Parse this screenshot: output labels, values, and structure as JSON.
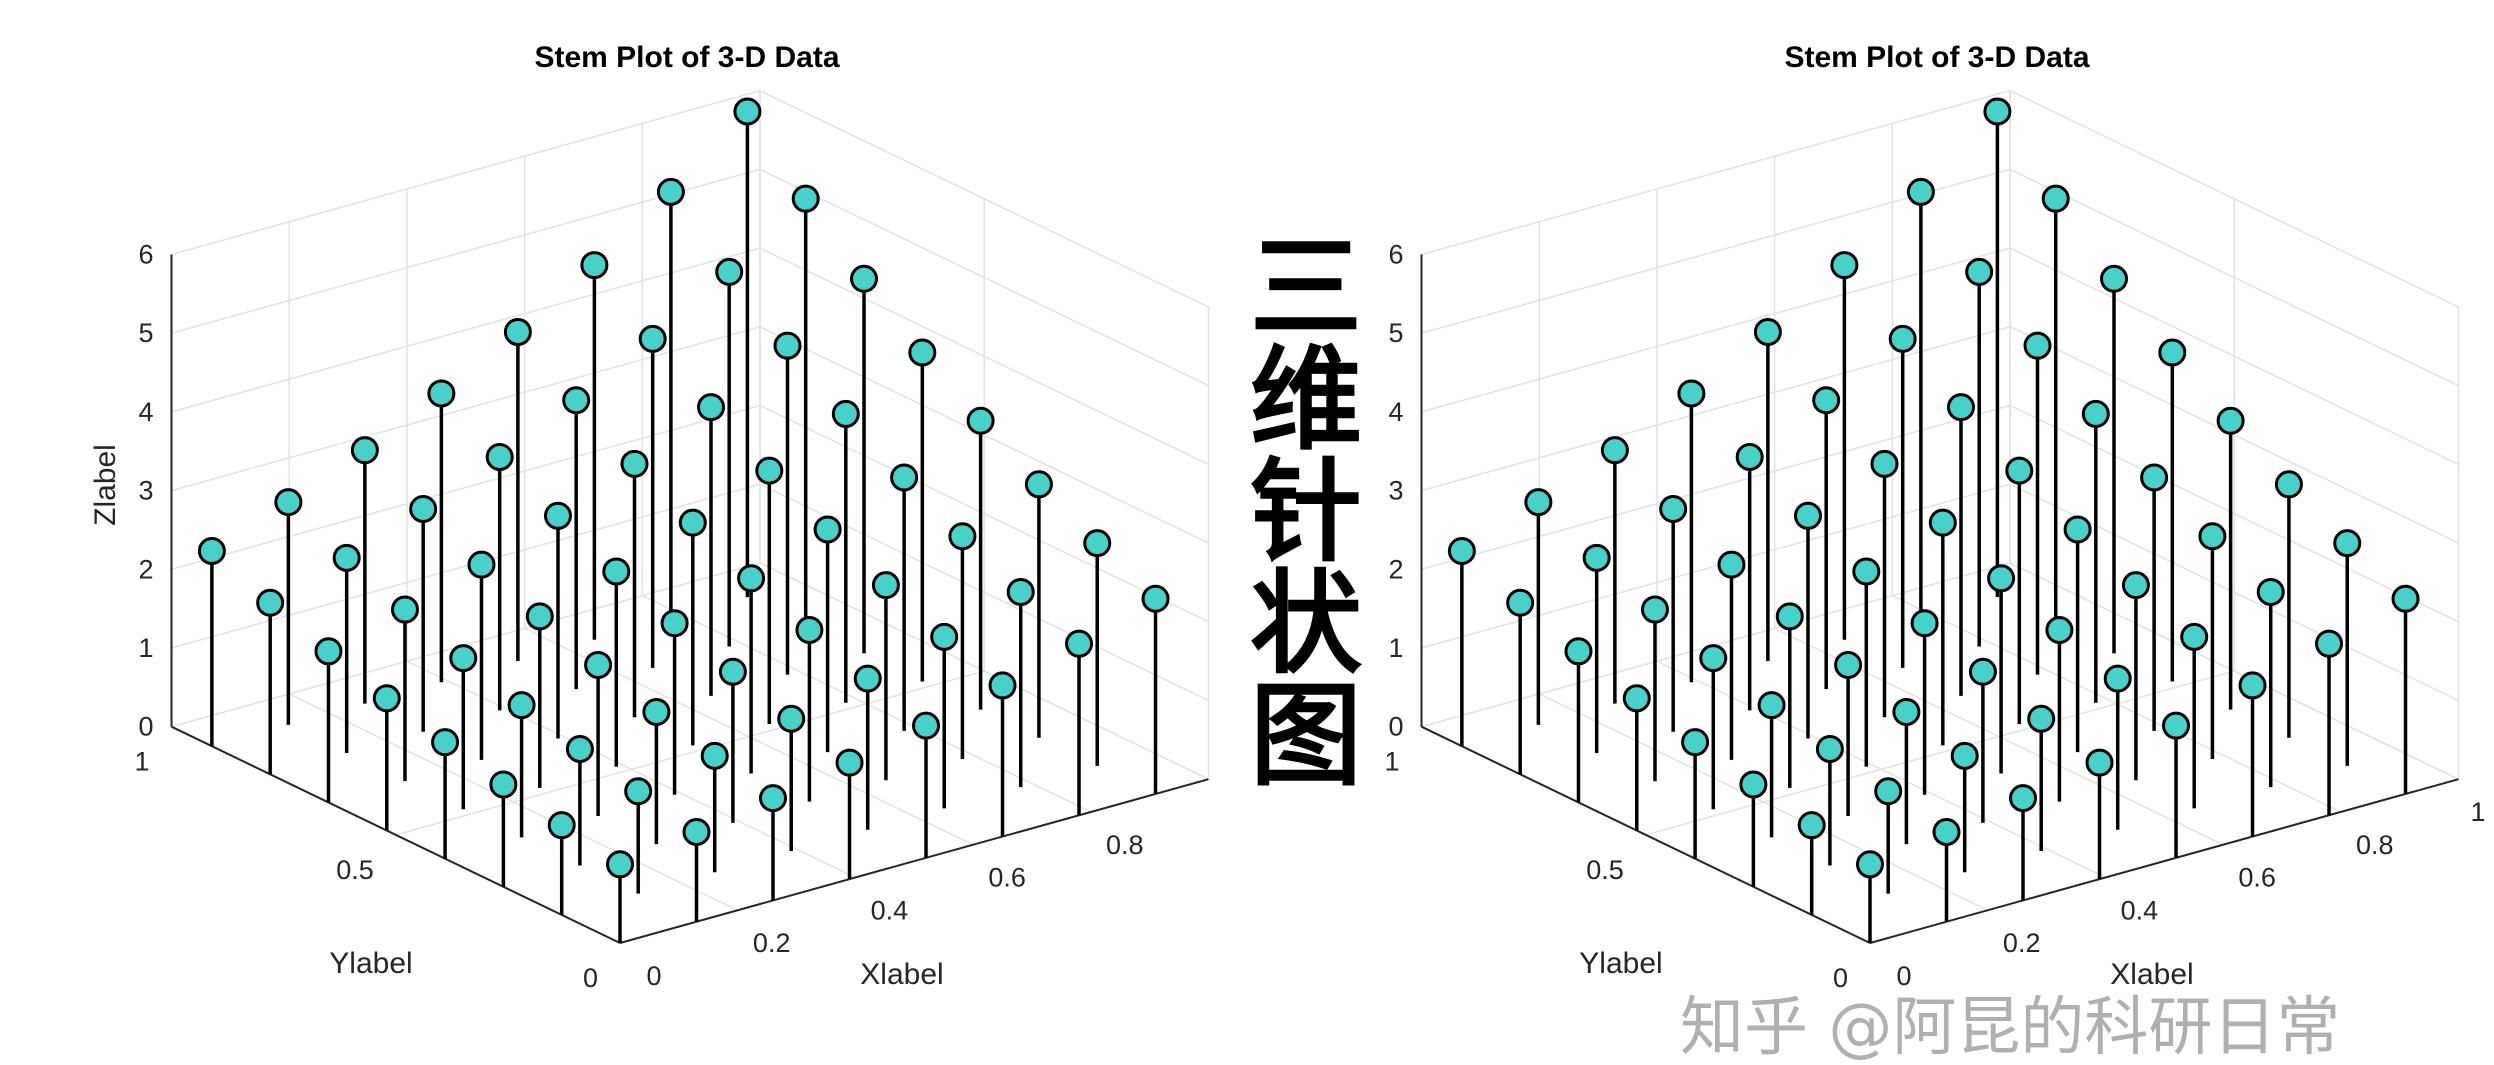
{
  "chart_data": [
    {
      "type": "stem3",
      "title": "Stem Plot of 3-D Data",
      "xlabel": "Xlabel",
      "ylabel": "Ylabel",
      "zlabel": "Zlabel",
      "xlim": [
        0,
        1
      ],
      "ylim": [
        0,
        1
      ],
      "zlim": [
        0,
        6
      ],
      "xticks": [
        "0",
        "0.2",
        "0.4",
        "0.6",
        "0.8"
      ],
      "yticks": [
        "0",
        "0.5",
        "1"
      ],
      "zticks": [
        "0",
        "1",
        "2",
        "3",
        "4",
        "5",
        "6"
      ],
      "grid": true,
      "marker_color": "#48d1c8",
      "stem_color": "#000000",
      "x": [
        0,
        0.13,
        0.26,
        0.39,
        0.52,
        0.65,
        0.78,
        0.91
      ],
      "y": [
        0,
        0.13,
        0.26,
        0.39,
        0.52,
        0.65,
        0.78,
        0.91
      ],
      "z": [
        [
          1.0,
          1.14,
          1.3,
          1.48,
          1.68,
          1.92,
          2.18,
          2.48
        ],
        [
          1.14,
          1.3,
          1.48,
          1.68,
          1.92,
          2.18,
          2.48,
          2.83
        ],
        [
          1.3,
          1.48,
          1.68,
          1.92,
          2.18,
          2.48,
          2.83,
          3.22
        ],
        [
          1.48,
          1.68,
          1.92,
          2.18,
          2.48,
          2.83,
          3.22,
          3.67
        ],
        [
          1.68,
          1.92,
          2.18,
          2.48,
          2.83,
          3.22,
          3.67,
          4.18
        ],
        [
          1.92,
          2.18,
          2.48,
          2.83,
          3.22,
          3.67,
          4.18,
          4.76
        ],
        [
          2.18,
          2.48,
          2.83,
          3.22,
          3.67,
          4.18,
          4.76,
          5.42
        ],
        [
          2.48,
          2.83,
          3.22,
          3.67,
          4.18,
          4.76,
          5.42,
          6.17
        ]
      ]
    },
    {
      "type": "stem3",
      "title": "Stem Plot of 3-D Data",
      "xlabel": "Xlabel",
      "ylabel": "Ylabel",
      "xlim": [
        0,
        1
      ],
      "ylim": [
        0,
        1
      ],
      "zlim": [
        0,
        6
      ],
      "xticks": [
        "0",
        "0.2",
        "0.4",
        "0.6",
        "0.8",
        "1"
      ],
      "yticks": [
        "0",
        "0.5",
        "1"
      ],
      "zticks": [
        "0",
        "1",
        "2",
        "3",
        "4",
        "5",
        "6"
      ],
      "grid": true,
      "marker_color": "#48d1c8",
      "stem_color": "#000000",
      "x": [
        0,
        0.13,
        0.26,
        0.39,
        0.52,
        0.65,
        0.78,
        0.91
      ],
      "y": [
        0,
        0.13,
        0.26,
        0.39,
        0.52,
        0.65,
        0.78,
        0.91
      ],
      "z": [
        [
          1.0,
          1.14,
          1.3,
          1.48,
          1.68,
          1.92,
          2.18,
          2.48
        ],
        [
          1.14,
          1.3,
          1.48,
          1.68,
          1.92,
          2.18,
          2.48,
          2.83
        ],
        [
          1.3,
          1.48,
          1.68,
          1.92,
          2.18,
          2.48,
          2.83,
          3.22
        ],
        [
          1.48,
          1.68,
          1.92,
          2.18,
          2.48,
          2.83,
          3.22,
          3.67
        ],
        [
          1.68,
          1.92,
          2.18,
          2.48,
          2.83,
          3.22,
          3.67,
          4.18
        ],
        [
          1.92,
          2.18,
          2.48,
          2.83,
          3.22,
          3.67,
          4.18,
          4.76
        ],
        [
          2.18,
          2.48,
          2.83,
          3.22,
          3.67,
          4.18,
          4.76,
          5.42
        ],
        [
          2.48,
          2.83,
          3.22,
          3.67,
          4.18,
          4.76,
          5.42,
          6.17
        ]
      ]
    }
  ],
  "center_title": "三维针状图",
  "watermark": "知乎 @阿昆的科研日常"
}
